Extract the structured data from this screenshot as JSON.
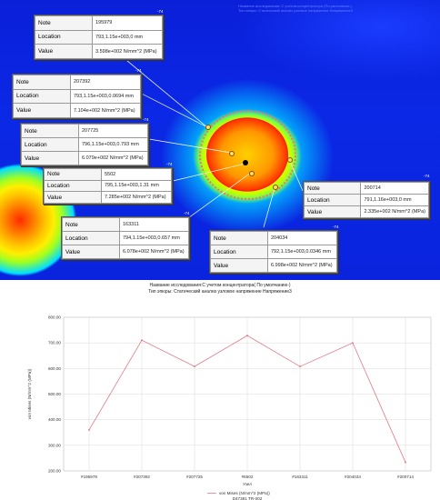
{
  "model_header": {
    "lines": [
      "Название исследования: С учетом концентратора (По умолчанию )",
      "Тип эпюры: Статический анализ узловое напряжение Напряжение3"
    ]
  },
  "annotations": [
    {
      "tag": "-74",
      "note_label": "Note",
      "note": "195979",
      "location_label": "Location",
      "location": "793,1.15e+003,0 mm",
      "value_label": "Value",
      "value": "3.598e+002 N/mm^2 (MPa)"
    },
    {
      "tag": "-74",
      "note_label": "Note",
      "note": "207392",
      "location_label": "Location",
      "location": "793,1.15e+003,0.0694 mm",
      "value_label": "Value",
      "value": "7.104e+002 N/mm^2 (MPa)"
    },
    {
      "tag": "-74",
      "note_label": "Note",
      "note": "207725",
      "location_label": "Location",
      "location": "796,1.15e+003,0.793 mm",
      "value_label": "Value",
      "value": "6.079e+002 N/mm^2 (MPa)"
    },
    {
      "tag": "-74",
      "note_label": "Note",
      "note": "5502",
      "location_label": "Location",
      "location": "795,1.15e+003,1.31 mm",
      "value_label": "Value",
      "value": "7.285e+002 N/mm^2 (MPa)"
    },
    {
      "tag": "-74",
      "note_label": "Note",
      "note": "163311",
      "location_label": "Location",
      "location": "794,1.15e+003,0.657 mm",
      "value_label": "Value",
      "value": "6.078e+002 N/mm^2 (MPa)"
    },
    {
      "tag": "-74",
      "note_label": "Note",
      "note": "204034",
      "location_label": "Location",
      "location": "792,1.15e+003,0.0346 mm",
      "value_label": "Value",
      "value": "6.998e+002 N/mm^2 (MPa)"
    },
    {
      "tag": "-74",
      "note_label": "Note",
      "note": "200714",
      "location_label": "Location",
      "location": "791,1.16e+003,0 mm",
      "value_label": "Value",
      "value": "2.335e+002 N/mm^2 (MPa)"
    }
  ],
  "chart_title": {
    "line1": "Название исследования:С учетом концентратора( По умолчанию-)",
    "line2": "Тип эпюры: Статический анализ узловое напряжение Напряжение3"
  },
  "chart_data": {
    "type": "line",
    "categories": [
      "#195979",
      "#207392",
      "#207725",
      "#5502",
      "#163311",
      "#204034",
      "#200714"
    ],
    "series": [
      {
        "name": "von Mises (N/mm^2 (MPa))",
        "values": [
          359.8,
          710.4,
          607.9,
          728.5,
          607.8,
          699.8,
          233.5
        ],
        "color": "#e06a7a"
      }
    ],
    "y_ticks": [
      "200.00",
      "300.00",
      "400.00",
      "500.00",
      "600.00",
      "700.00",
      "800.00"
    ],
    "ylim": [
      200,
      800
    ],
    "ylabel": "von Mises (N/mm^2 (MPa))",
    "xlabel": "Узел",
    "grid": true,
    "legend_placement": "bottom",
    "footer_text": "D47381 TR-002"
  }
}
